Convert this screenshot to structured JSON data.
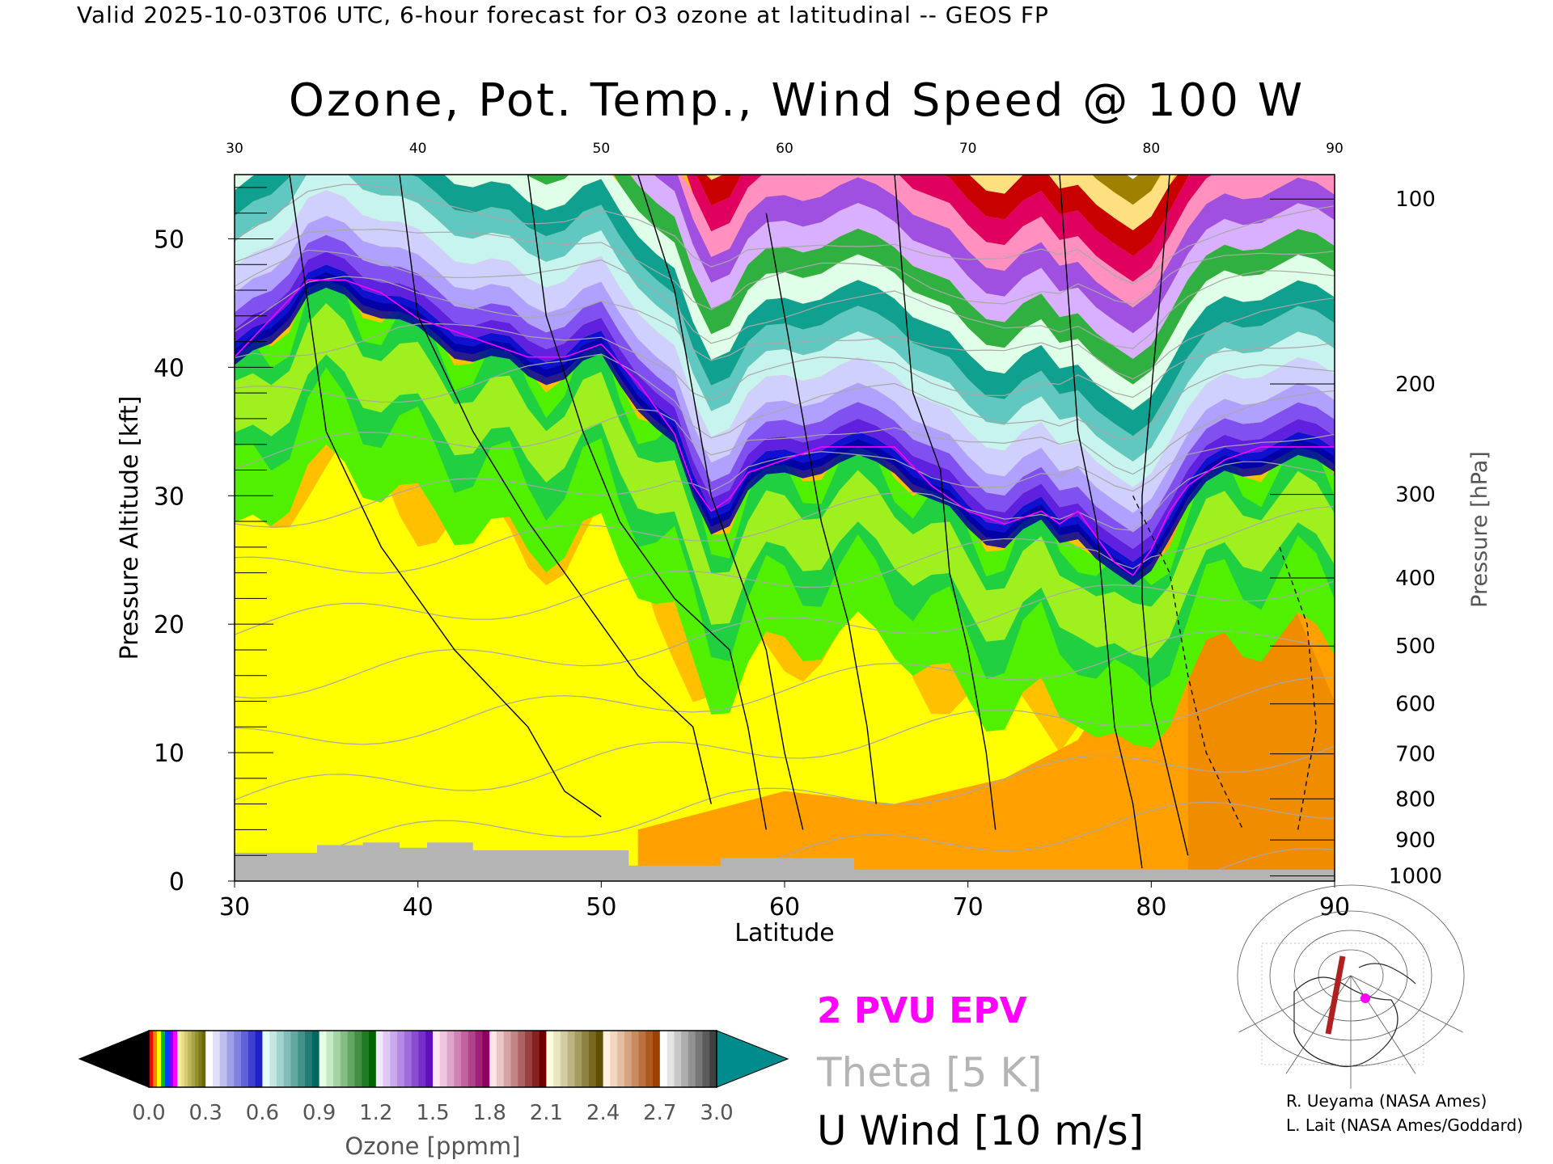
{
  "header": "Valid 2025-10-03T06 UTC, 6-hour forecast for O3 ozone at latitudinal -- GEOS FP",
  "chart_data": {
    "type": "heatmap",
    "title": "Ozone, Pot. Temp., Wind Speed @ 100 W",
    "xlabel": "Latitude",
    "ylabel_left": "Pressure Altitude [kft]",
    "ylabel_right": "Pressure [hPa]",
    "xlim": [
      30,
      90
    ],
    "ylim": [
      0,
      55
    ],
    "x_ticks": [
      30,
      40,
      50,
      60,
      70,
      80,
      90
    ],
    "x_tick_labels": [
      "30",
      "40",
      "50",
      "60",
      "70",
      "80",
      "90"
    ],
    "y_ticks": [
      0,
      10,
      20,
      30,
      40,
      50
    ],
    "y_tick_labels": [
      "0",
      "10",
      "20",
      "30",
      "40",
      "50"
    ],
    "pressure_ticks": [
      {
        "label": "100",
        "kft": 53.1
      },
      {
        "label": "200",
        "kft": 38.7
      },
      {
        "label": "300",
        "kft": 30.1
      },
      {
        "label": "400",
        "kft": 23.6
      },
      {
        "label": "500",
        "kft": 18.3
      },
      {
        "label": "600",
        "kft": 13.8
      },
      {
        "label": "700",
        "kft": 9.9
      },
      {
        "label": "800",
        "kft": 6.4
      },
      {
        "label": "900",
        "kft": 3.2
      },
      {
        "label": "1000",
        "kft": 0.4
      }
    ],
    "tropopause_kft": [
      [
        30,
        40
      ],
      [
        32,
        43
      ],
      [
        34,
        46
      ],
      [
        36,
        46
      ],
      [
        38,
        45
      ],
      [
        40,
        43
      ],
      [
        42,
        42
      ],
      [
        44,
        41
      ],
      [
        46,
        40
      ],
      [
        48,
        40
      ],
      [
        50,
        41
      ],
      [
        52,
        38
      ],
      [
        54,
        34
      ],
      [
        55,
        30
      ],
      [
        56,
        28
      ],
      [
        57,
        29
      ],
      [
        58,
        31
      ],
      [
        60,
        32
      ],
      [
        62,
        33
      ],
      [
        64,
        33
      ],
      [
        66,
        33
      ],
      [
        68,
        30
      ],
      [
        70,
        28
      ],
      [
        72,
        27
      ],
      [
        74,
        28
      ],
      [
        75,
        27
      ],
      [
        76,
        28
      ],
      [
        77,
        26
      ],
      [
        78,
        24
      ],
      [
        79,
        23
      ],
      [
        80,
        25
      ],
      [
        81,
        28
      ],
      [
        82,
        30
      ],
      [
        84,
        32
      ],
      [
        86,
        33
      ],
      [
        88,
        33
      ],
      [
        90,
        33
      ]
    ],
    "surface_kft": [
      [
        30,
        2.2
      ],
      [
        34.5,
        2.2
      ],
      [
        34.5,
        2.8
      ],
      [
        37,
        2.8
      ],
      [
        37,
        3.0
      ],
      [
        39,
        3.0
      ],
      [
        39,
        2.6
      ],
      [
        40.5,
        2.6
      ],
      [
        40.5,
        3.0
      ],
      [
        43,
        3.0
      ],
      [
        43,
        2.4
      ],
      [
        51.5,
        2.4
      ],
      [
        51.5,
        1.2
      ],
      [
        56.5,
        1.2
      ],
      [
        56.5,
        1.8
      ],
      [
        63.8,
        1.8
      ],
      [
        63.8,
        0.9
      ],
      [
        90,
        0.9
      ]
    ],
    "colorbar": {
      "label": "Ozone [ppmm]",
      "min": 0.0,
      "max": 3.0,
      "tick_labels": [
        "0.0",
        "0.3",
        "0.6",
        "0.9",
        "1.2",
        "1.5",
        "1.8",
        "2.1",
        "2.4",
        "2.7",
        "3.0"
      ],
      "segments": [
        {
          "from": "#fff0a0",
          "to": "#6a6a00"
        },
        {
          "from": "#ffffff",
          "to": "#2020c8"
        },
        {
          "from": "#e6fcf8",
          "to": "#006860"
        },
        {
          "from": "#e6ffe6",
          "to": "#006400"
        },
        {
          "from": "#f4e6ff",
          "to": "#6010c0"
        },
        {
          "from": "#ffe6f4",
          "to": "#900060"
        },
        {
          "from": "#ffe6e6",
          "to": "#700000"
        },
        {
          "from": "#ffffe0",
          "to": "#605000"
        },
        {
          "from": "#fff0e0",
          "to": "#a04000"
        },
        {
          "from": "#ffffff",
          "to": "#404040"
        }
      ],
      "under_color": "#000000",
      "over_color": "#008c8c"
    },
    "legend": {
      "epv": "2 PVU EPV",
      "theta": "Theta [5 K]",
      "uwind": "U Wind [10 m/s]"
    },
    "colors": {
      "epv": "#ff00ff",
      "theta": "#a8a8a8",
      "surface": "#b4b4b4",
      "uwind": "#000000"
    },
    "inset_map": {
      "section_longitude": "100 W",
      "line_color": "#b0201e",
      "marker_color": "#ff00ff"
    }
  },
  "credits": [
    "R. Ueyama (NASA Ames)",
    "L. Lait (NASA Ames/Goddard)"
  ]
}
